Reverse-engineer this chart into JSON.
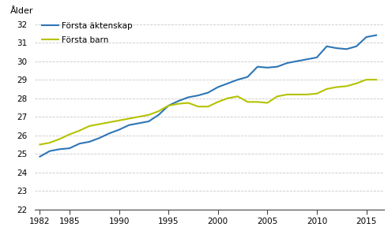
{
  "years": [
    1982,
    1983,
    1984,
    1985,
    1986,
    1987,
    1988,
    1989,
    1990,
    1991,
    1992,
    1993,
    1994,
    1995,
    1996,
    1997,
    1998,
    1999,
    2000,
    2001,
    2002,
    2003,
    2004,
    2005,
    2006,
    2007,
    2008,
    2009,
    2010,
    2011,
    2012,
    2013,
    2014,
    2015,
    2016
  ],
  "marriage": [
    24.85,
    25.15,
    25.25,
    25.3,
    25.55,
    25.65,
    25.85,
    26.1,
    26.3,
    26.55,
    26.65,
    26.75,
    27.1,
    27.6,
    27.85,
    28.05,
    28.15,
    28.3,
    28.6,
    28.8,
    29.0,
    29.15,
    29.7,
    29.65,
    29.7,
    29.9,
    30.0,
    30.1,
    30.2,
    30.8,
    30.7,
    30.65,
    30.8,
    31.3,
    31.4
  ],
  "firstborn": [
    25.5,
    25.6,
    25.8,
    26.05,
    26.25,
    26.5,
    26.6,
    26.7,
    26.8,
    26.9,
    27.0,
    27.1,
    27.3,
    27.6,
    27.7,
    27.75,
    27.55,
    27.55,
    27.8,
    28.0,
    28.1,
    27.8,
    27.8,
    27.75,
    28.1,
    28.2,
    28.2,
    28.2,
    28.25,
    28.5,
    28.6,
    28.65,
    28.8,
    29.0,
    29.0
  ],
  "marriage_color": "#2e75b6",
  "firstborn_color": "#b5c200",
  "ylabel": "Ålder",
  "xticks": [
    1982,
    1985,
    1990,
    1995,
    2000,
    2005,
    2010,
    2015
  ],
  "yticks": [
    22,
    23,
    24,
    25,
    26,
    27,
    28,
    29,
    30,
    31,
    32
  ],
  "ylim": [
    22,
    32.4
  ],
  "xlim": [
    1981.5,
    2016.8
  ],
  "legend_marriage": "Första äktenskap",
  "legend_firstborn": "Första barn",
  "bg_color": "#ffffff",
  "grid_color": "#c8c8c8",
  "line_width": 1.5
}
